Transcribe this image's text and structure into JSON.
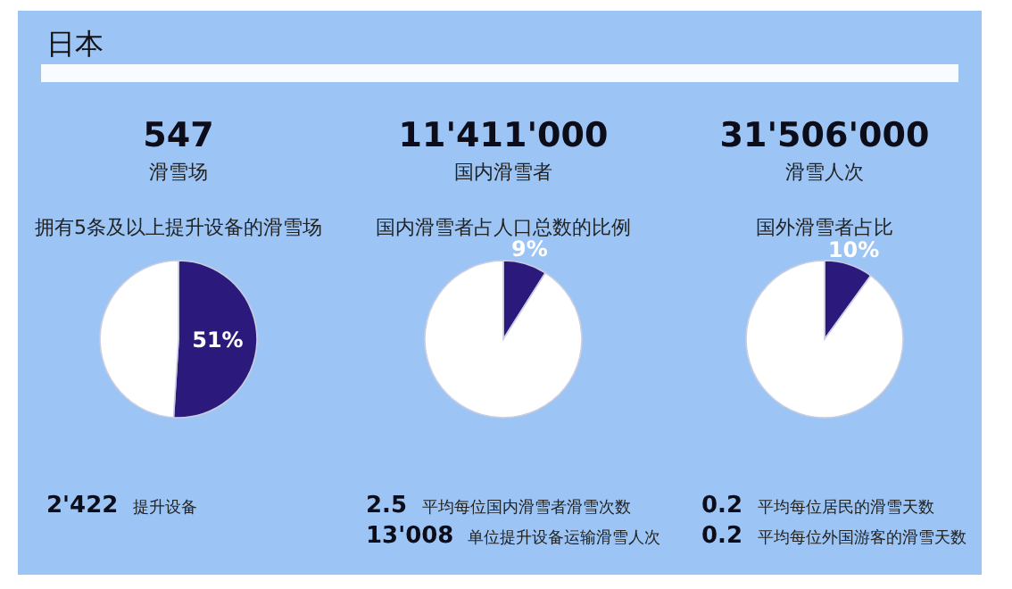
{
  "chart_data": [
    {
      "type": "other",
      "title": "日本"
    },
    {
      "type": "pie",
      "title": "547",
      "subtitle": "滑雪场",
      "annotations": [
        "拥有5条及以上提升设备的滑雪场",
        "2'422",
        "提升设备"
      ],
      "categories": [
        null,
        null
      ],
      "values": [
        51,
        49
      ],
      "colors": [
        "#2b1a7c",
        "#ffffff"
      ],
      "value_labels": [
        "51%",
        null
      ]
    },
    {
      "type": "pie",
      "title": "11'411'000",
      "subtitle": "国内滑雪者",
      "annotations": [
        "国内滑雪者占人口总数的比例",
        "2.5",
        "平均每位国内滑雪者滑雪次数",
        "13'008",
        "单位提升设备运输滑雪人次"
      ],
      "categories": [
        null,
        null
      ],
      "values": [
        9,
        91
      ],
      "colors": [
        "#2b1a7c",
        "#ffffff"
      ],
      "value_labels": [
        "9%",
        null
      ]
    },
    {
      "type": "pie",
      "title": "31'506'000",
      "subtitle": "滑雪人次",
      "annotations": [
        "国外滑雪者占比",
        "0.2",
        "平均每位居民的滑雪天数",
        "0.2",
        "平均每位外国游客的滑雪天数"
      ],
      "categories": [
        null,
        null
      ],
      "values": [
        10,
        90
      ],
      "colors": [
        "#2b1a7c",
        "#ffffff"
      ],
      "value_labels": [
        "10%",
        null
      ]
    }
  ]
}
